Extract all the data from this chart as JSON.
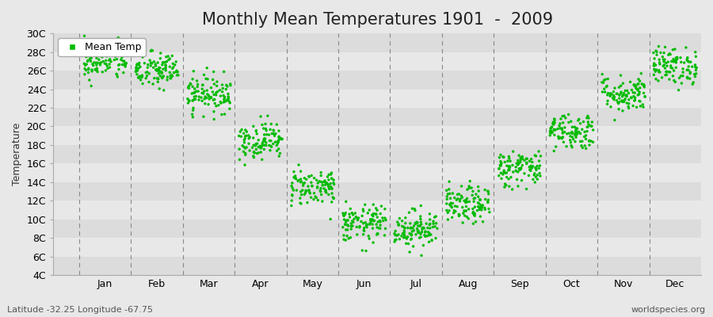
{
  "title": "Monthly Mean Temperatures 1901  -  2009",
  "ylabel": "Temperature",
  "subtitle_left": "Latitude -32.25 Longitude -67.75",
  "subtitle_right": "worldspecies.org",
  "legend_label": "Mean Temp",
  "months": [
    "Jan",
    "Feb",
    "Mar",
    "Apr",
    "May",
    "Jun",
    "Jul",
    "Aug",
    "Sep",
    "Oct",
    "Nov",
    "Dec"
  ],
  "mean_temps": [
    27.0,
    26.0,
    23.5,
    18.5,
    13.5,
    9.5,
    9.0,
    11.5,
    15.5,
    19.5,
    23.5,
    26.5
  ],
  "std_temps": [
    1.0,
    1.0,
    1.0,
    1.0,
    1.0,
    1.0,
    1.0,
    1.0,
    1.0,
    1.0,
    1.0,
    1.0
  ],
  "n_years": 109,
  "ylim": [
    4,
    30
  ],
  "yticks": [
    4,
    6,
    8,
    10,
    12,
    14,
    16,
    18,
    20,
    22,
    24,
    26,
    28,
    30
  ],
  "dot_color": "#00BB00",
  "bg_dark": "#DCDCDC",
  "bg_light": "#E8E8E8",
  "grid_color": "#FFFFFF",
  "dashed_line_color": "#888888",
  "title_fontsize": 15,
  "axis_label_fontsize": 9,
  "tick_fontsize": 9,
  "legend_fontsize": 9,
  "dot_size": 6
}
